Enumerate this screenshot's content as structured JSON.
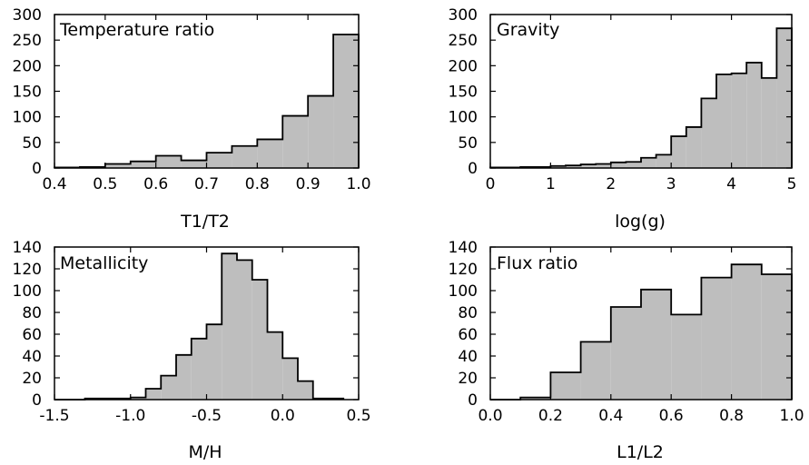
{
  "chart_data": [
    {
      "type": "bar",
      "title": "Temperature ratio",
      "xlabel": "T1/T2",
      "ylabel": "",
      "xlim": [
        0.4,
        1.0
      ],
      "ylim": [
        0,
        300
      ],
      "xticks": [
        "0.4",
        "0.5",
        "0.6",
        "0.7",
        "0.8",
        "0.9",
        "1.0"
      ],
      "yticks": [
        "0",
        "50",
        "100",
        "150",
        "200",
        "250",
        "300"
      ],
      "bin_edges": [
        0.4,
        0.45,
        0.5,
        0.55,
        0.6,
        0.65,
        0.7,
        0.75,
        0.8,
        0.85,
        0.9,
        0.95,
        1.0
      ],
      "values": [
        1,
        2,
        8,
        13,
        24,
        15,
        30,
        43,
        56,
        102,
        141,
        261
      ],
      "fill_color": "#bebebe"
    },
    {
      "type": "bar",
      "title": "Gravity",
      "xlabel": "log(g)",
      "ylabel": "",
      "xlim": [
        0,
        5
      ],
      "ylim": [
        0,
        300
      ],
      "xticks": [
        "0",
        "1",
        "2",
        "3",
        "4",
        "5"
      ],
      "yticks": [
        "0",
        "50",
        "100",
        "150",
        "200",
        "250",
        "300"
      ],
      "bin_edges": [
        0.0,
        0.25,
        0.5,
        0.75,
        1.0,
        1.25,
        1.5,
        1.75,
        2.0,
        2.25,
        2.5,
        2.75,
        3.0,
        3.25,
        3.5,
        3.75,
        4.0,
        4.25,
        4.5,
        4.75,
        5.0
      ],
      "values": [
        1,
        1,
        2,
        2,
        4,
        5,
        7,
        8,
        11,
        12,
        20,
        26,
        62,
        80,
        136,
        183,
        185,
        206,
        176,
        273
      ],
      "fill_color": "#bebebe"
    },
    {
      "type": "bar",
      "title": "Metallicity",
      "xlabel": "M/H",
      "ylabel": "",
      "xlim": [
        -1.5,
        0.5
      ],
      "ylim": [
        0,
        140
      ],
      "xticks": [
        "-1.5",
        "-1.0",
        "-0.5",
        "0.0",
        "0.5"
      ],
      "yticks": [
        "0",
        "20",
        "40",
        "60",
        "80",
        "100",
        "120",
        "140"
      ],
      "bin_edges": [
        -1.5,
        -1.4,
        -1.3,
        -1.2,
        -1.1,
        -1.0,
        -0.9,
        -0.8,
        -0.7,
        -0.6,
        -0.5,
        -0.4,
        -0.3,
        -0.2,
        -0.1,
        0.0,
        0.1,
        0.2,
        0.3,
        0.4
      ],
      "values": [
        0,
        0,
        1,
        1,
        1,
        2,
        10,
        22,
        41,
        56,
        69,
        134,
        128,
        110,
        62,
        38,
        17,
        1,
        1
      ],
      "fill_color": "#bebebe"
    },
    {
      "type": "bar",
      "title": "Flux ratio",
      "xlabel": "L1/L2",
      "ylabel": "",
      "xlim": [
        0.0,
        1.0
      ],
      "ylim": [
        0,
        140
      ],
      "xticks": [
        "0.0",
        "0.2",
        "0.4",
        "0.6",
        "0.8",
        "1.0"
      ],
      "yticks": [
        "0",
        "20",
        "40",
        "60",
        "80",
        "100",
        "120",
        "140"
      ],
      "bin_edges": [
        0.0,
        0.1,
        0.2,
        0.3,
        0.4,
        0.5,
        0.6,
        0.7,
        0.8,
        0.9,
        1.0
      ],
      "values": [
        0,
        2,
        25,
        53,
        85,
        101,
        78,
        112,
        124,
        115
      ],
      "fill_color": "#bebebe"
    }
  ]
}
